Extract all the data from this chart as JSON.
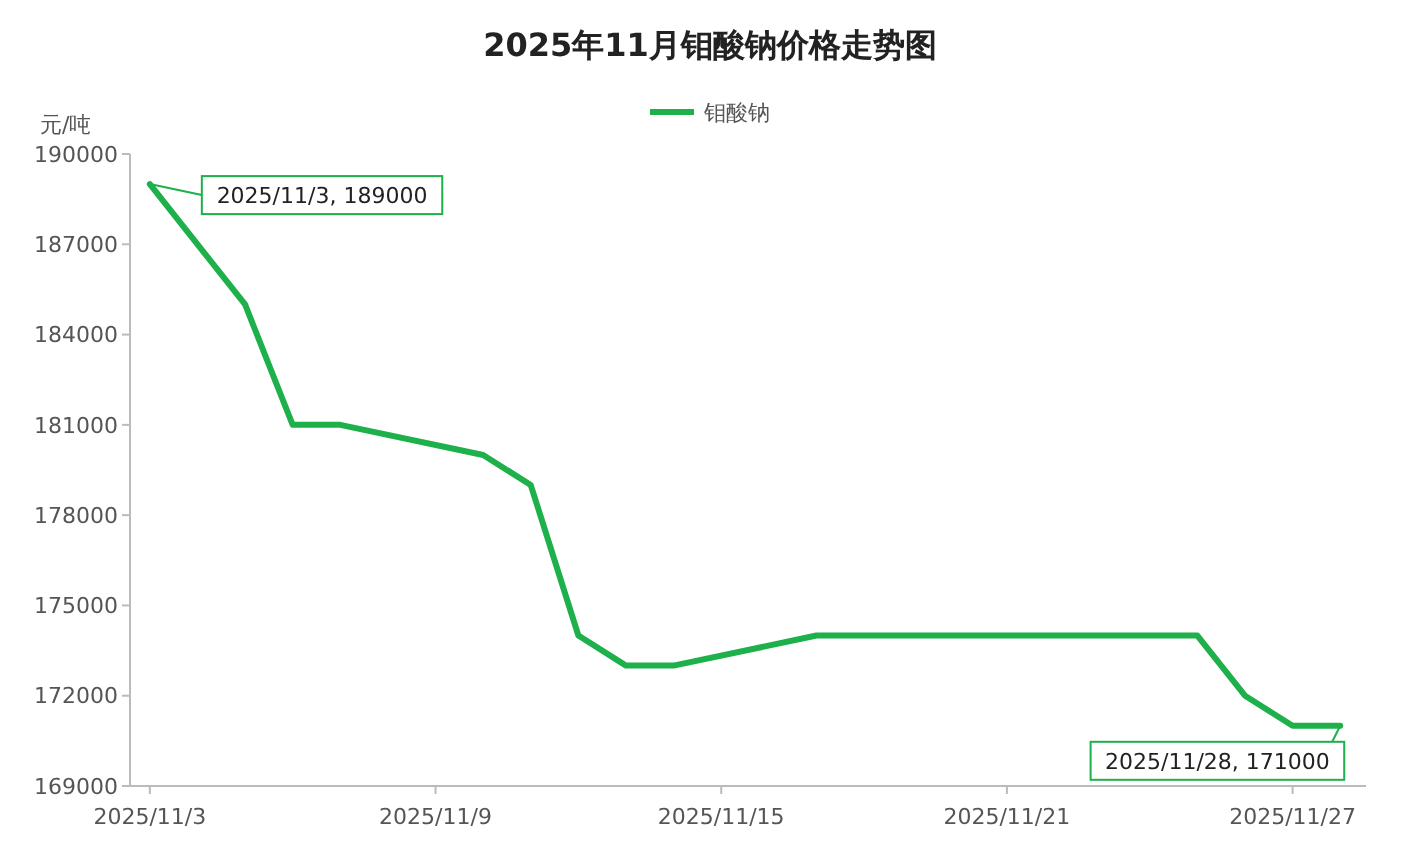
{
  "chart_data": {
    "type": "line",
    "title": "2025年11月钼酸钠价格走势图",
    "ylabel": "元/吨",
    "x": [
      "2025-11-03",
      "2025-11-05",
      "2025-11-06",
      "2025-11-07",
      "2025-11-10",
      "2025-11-11",
      "2025-11-12",
      "2025-11-13",
      "2025-11-14",
      "2025-11-17",
      "2025-11-25",
      "2025-11-26",
      "2025-11-27",
      "2025-11-28"
    ],
    "series": [
      {
        "name": "钼酸钠",
        "color": "#1db04b",
        "values": [
          189000,
          185000,
          181000,
          181000,
          180000,
          179000,
          174000,
          173000,
          173000,
          174000,
          174000,
          172000,
          171000,
          171000
        ]
      }
    ],
    "xlim": [
      "2025-11-02T14:00",
      "2025-11-28T13:00"
    ],
    "xticks": [
      {
        "value": "2025-11-03",
        "label": "2025/11/3"
      },
      {
        "value": "2025-11-09",
        "label": "2025/11/9"
      },
      {
        "value": "2025-11-15",
        "label": "2025/11/15"
      },
      {
        "value": "2025-11-21",
        "label": "2025/11/21"
      },
      {
        "value": "2025-11-27",
        "label": "2025/11/27"
      }
    ],
    "ylim": [
      169000,
      190000
    ],
    "yticks": [
      169000,
      172000,
      175000,
      178000,
      181000,
      184000,
      187000,
      190000
    ],
    "grid": false,
    "legend": "top",
    "marker": "none",
    "line_style": "solid",
    "annotations": [
      {
        "text": "2025/11/3, 189000",
        "x": "2025-11-03",
        "y": 189000
      },
      {
        "text": "2025/11/28, 171000",
        "x": "2025-11-28",
        "y": 171000
      }
    ]
  }
}
